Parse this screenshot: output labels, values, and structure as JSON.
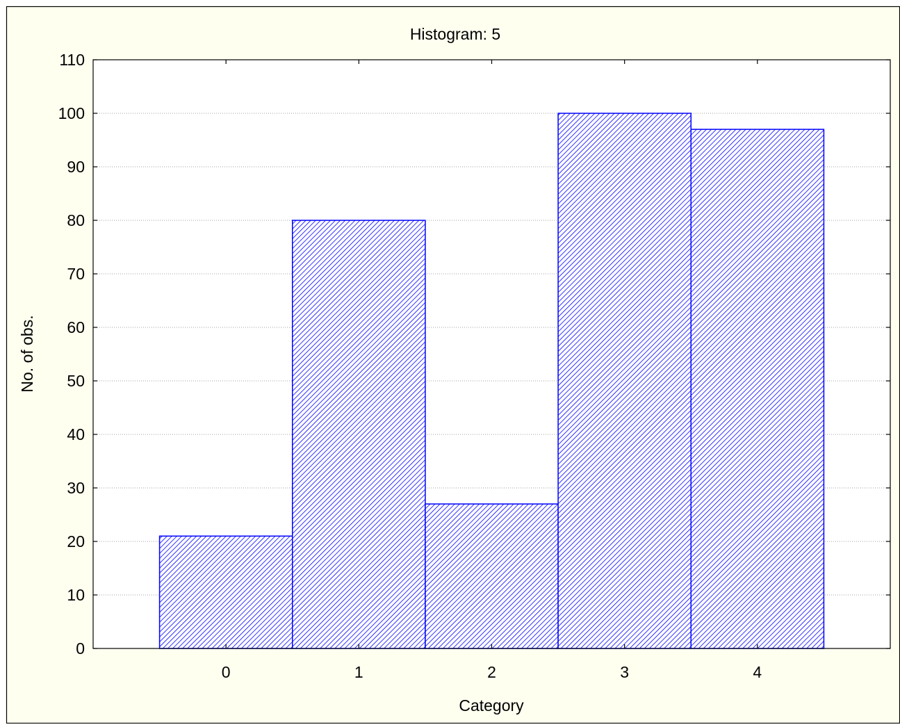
{
  "colors": {
    "window_background": "#FFFFF0",
    "plot_background": "#FFFFFF",
    "bar_stroke": "#0000FF",
    "bar_hatch": "#0000FF",
    "gridline": "#A0A0A0"
  },
  "chart_data": {
    "type": "bar",
    "title": "Histogram: 5",
    "xlabel": "Category",
    "ylabel": "No. of obs.",
    "categories": [
      "0",
      "1",
      "2",
      "3",
      "4"
    ],
    "values": [
      21,
      80,
      27,
      100,
      97
    ],
    "ylim": [
      0,
      110
    ],
    "yticks": [
      "0",
      "10",
      "20",
      "30",
      "40",
      "50",
      "60",
      "70",
      "80",
      "90",
      "100",
      "110"
    ],
    "xlim": [
      -1,
      5
    ],
    "grid": "horizontal dotted",
    "fill": "diagonal hatch",
    "legend": "none"
  }
}
